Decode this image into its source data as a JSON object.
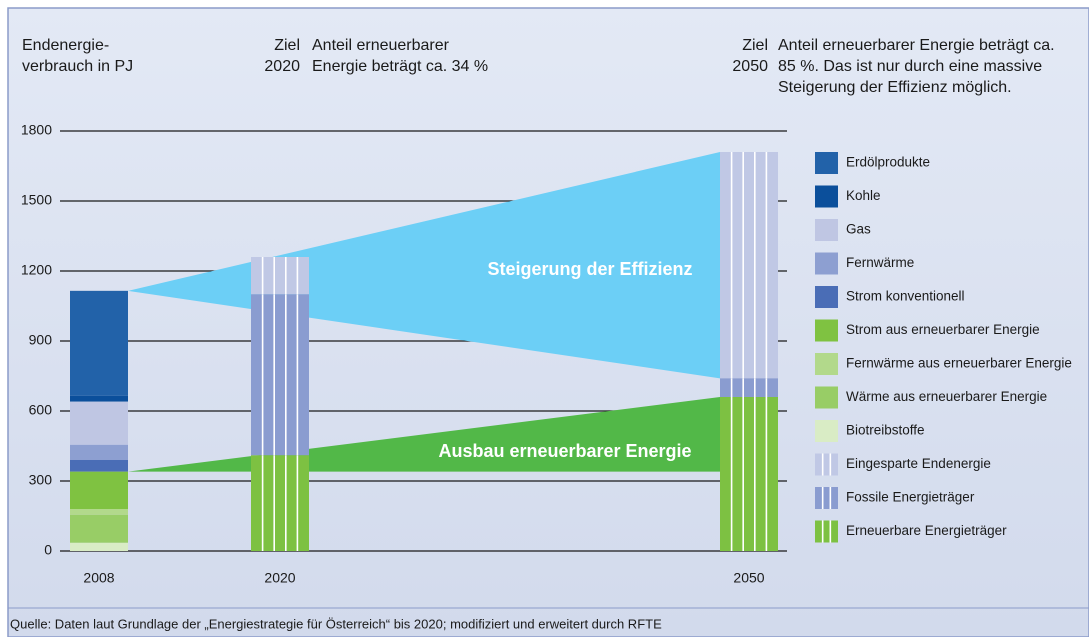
{
  "chart_data": {
    "type": "stacked_bar",
    "y_label": [
      "Endenergie-",
      "verbrauch in PJ"
    ],
    "annotations": [
      {
        "label": [
          "Ziel",
          "2020"
        ],
        "text": [
          "Anteil erneuerbarer",
          "Energie beträgt ca. 34 %"
        ]
      },
      {
        "label": [
          "Ziel",
          "2050"
        ],
        "text": [
          "Anteil erneuerbarer Energie beträgt ca.",
          "85 %. Das ist nur durch eine massive",
          "Steigerung der Effizienz möglich."
        ]
      }
    ],
    "wedge_labels": [
      "Steigerung der Effizienz",
      "Ausbau erneuerbarer Energie"
    ],
    "categories": [
      "2008",
      "2020",
      "2050"
    ],
    "series": [
      {
        "name": "Erdölprodukte",
        "color": "#2262a9",
        "values": [
          450,
          null,
          null
        ]
      },
      {
        "name": "Kohle",
        "color": "#0b4f9b",
        "values": [
          25,
          null,
          null
        ]
      },
      {
        "name": "Gas",
        "color": "#bfc6e3",
        "values": [
          185,
          null,
          null
        ]
      },
      {
        "name": "Fernwärme",
        "color": "#8d9fd1",
        "values": [
          65,
          null,
          null
        ]
      },
      {
        "name": "Strom konventionell",
        "color": "#4a6db6",
        "values": [
          50,
          null,
          null
        ]
      },
      {
        "name": "Strom aus erneuerbarer Energie",
        "color": "#7fc241",
        "values": [
          160,
          null,
          null
        ]
      },
      {
        "name": "Fernwärme aus erneuerbarer Energie",
        "color": "#b2d98b",
        "values": [
          25,
          null,
          null
        ]
      },
      {
        "name": "Wärme aus erneuerbarer Energie",
        "color": "#98cd66",
        "values": [
          120,
          null,
          null
        ]
      },
      {
        "name": "Biotreibstoffe",
        "color": "#d9ecc5",
        "values": [
          35,
          null,
          null
        ]
      },
      {
        "name": "Eingesparte Endenergie",
        "color": "#c0c8e5",
        "pattern": "striped",
        "values": [
          null,
          160,
          970
        ]
      },
      {
        "name": "Fossile Energieträger",
        "color": "#8a9cd0",
        "pattern": "striped",
        "values": [
          null,
          690,
          80
        ]
      },
      {
        "name": "Erneuerbare Energieträger",
        "color": "#7dc142",
        "pattern": "striped",
        "values": [
          null,
          410,
          660
        ]
      }
    ],
    "ylim": [
      0,
      1800
    ],
    "yticks": [
      0,
      300,
      600,
      900,
      1200,
      1500,
      1800
    ],
    "grid": true,
    "legend": "right",
    "source": "Quelle: Daten laut Grundlage der „Energiestrategie für Österreich“ bis 2020; modifiziert und erweitert durch RFTE"
  }
}
